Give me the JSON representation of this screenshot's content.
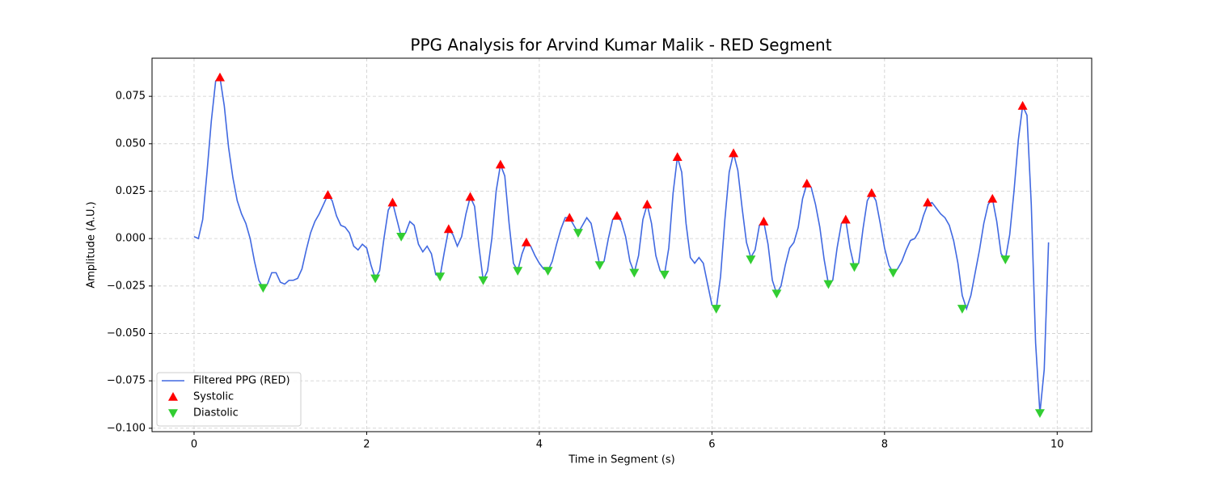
{
  "chart_data": {
    "type": "line",
    "title": "PPG Analysis for Arvind Kumar Malik - RED Segment",
    "xlabel": "Time in Segment (s)",
    "ylabel": "Amplitude (A.U.)",
    "xlim": [
      -0.487,
      10.4
    ],
    "ylim": [
      -0.1018,
      0.0951
    ],
    "xticks": [
      0,
      2,
      4,
      6,
      8,
      10
    ],
    "yticks": [
      {
        "value": -0.1,
        "label": "−0.100"
      },
      {
        "value": -0.075,
        "label": "−0.075"
      },
      {
        "value": -0.05,
        "label": "−0.050"
      },
      {
        "value": -0.025,
        "label": "−0.025"
      },
      {
        "value": 0,
        "label": "0.000"
      },
      0.025,
      {
        "value": 0.05,
        "label": "0.050"
      },
      0.075
    ],
    "grid": true,
    "legend": "lower left",
    "series": [
      {
        "name": "Filtered PPG (RED)",
        "type": "line",
        "color": "#4169e1",
        "x": [
          0,
          0.05,
          0.1,
          0.15,
          0.2,
          0.25,
          0.3,
          0.35,
          0.4,
          0.45,
          0.5,
          0.55,
          0.6,
          0.65,
          0.7,
          0.75,
          0.8,
          0.85,
          0.9,
          0.95,
          1,
          1.05,
          1.1,
          1.15,
          1.2,
          1.25,
          1.3,
          1.35,
          1.4,
          1.45,
          1.5,
          1.55,
          1.6,
          1.65,
          1.7,
          1.75,
          1.8,
          1.85,
          1.9,
          1.95,
          2,
          2.05,
          2.1,
          2.15,
          2.2,
          2.25,
          2.3,
          2.35,
          2.4,
          2.45,
          2.5,
          2.55,
          2.6,
          2.65,
          2.7,
          2.75,
          2.8,
          2.85,
          2.9,
          2.95,
          3,
          3.05,
          3.1,
          3.15,
          3.2,
          3.25,
          3.3,
          3.35,
          3.4,
          3.45,
          3.5,
          3.55,
          3.6,
          3.65,
          3.7,
          3.75,
          3.8,
          3.85,
          3.9,
          3.95,
          4,
          4.05,
          4.1,
          4.15,
          4.2,
          4.25,
          4.3,
          4.35,
          4.4,
          4.45,
          4.5,
          4.55,
          4.6,
          4.65,
          4.7,
          4.75,
          4.8,
          4.85,
          4.9,
          4.95,
          5,
          5.05,
          5.1,
          5.15,
          5.2,
          5.25,
          5.3,
          5.35,
          5.4,
          5.45,
          5.5,
          5.55,
          5.6,
          5.65,
          5.7,
          5.75,
          5.8,
          5.85,
          5.9,
          5.95,
          6,
          6.05,
          6.1,
          6.15,
          6.2,
          6.25,
          6.3,
          6.35,
          6.4,
          6.45,
          6.5,
          6.55,
          6.6,
          6.65,
          6.7,
          6.75,
          6.8,
          6.85,
          6.9,
          6.95,
          7,
          7.05,
          7.1,
          7.15,
          7.2,
          7.25,
          7.3,
          7.35,
          7.4,
          7.45,
          7.5,
          7.55,
          7.6,
          7.65,
          7.7,
          7.75,
          7.8,
          7.85,
          7.9,
          7.95,
          8,
          8.05,
          8.1,
          8.15,
          8.2,
          8.25,
          8.3,
          8.35,
          8.4,
          8.45,
          8.5,
          8.55,
          8.6,
          8.65,
          8.7,
          8.75,
          8.8,
          8.85,
          8.9,
          8.95,
          9,
          9.05,
          9.1,
          9.15,
          9.2,
          9.25,
          9.3,
          9.35,
          9.4,
          9.45,
          9.5,
          9.55,
          9.6,
          9.65,
          9.7,
          9.75,
          9.8,
          9.85,
          9.9
        ],
        "values": [
          0.001,
          0,
          0.01,
          0.035,
          0.062,
          0.083,
          0.085,
          0.07,
          0.048,
          0.032,
          0.02,
          0.013,
          0.008,
          0,
          -0.012,
          -0.022,
          -0.026,
          -0.024,
          -0.018,
          -0.018,
          -0.023,
          -0.024,
          -0.022,
          -0.022,
          -0.021,
          -0.016,
          -0.006,
          0.003,
          0.009,
          0.013,
          0.018,
          0.023,
          0.02,
          0.012,
          0.007,
          0.006,
          0.003,
          -0.004,
          -0.006,
          -0.003,
          -0.005,
          -0.014,
          -0.021,
          -0.017,
          0,
          0.015,
          0.019,
          0.01,
          0.001,
          0.003,
          0.009,
          0.007,
          -0.003,
          -0.007,
          -0.004,
          -0.008,
          -0.019,
          -0.02,
          -0.007,
          0.005,
          0.002,
          -0.004,
          0.001,
          0.013,
          0.022,
          0.017,
          -0.004,
          -0.022,
          -0.017,
          0,
          0.025,
          0.039,
          0.033,
          0.008,
          -0.013,
          -0.017,
          -0.008,
          -0.002,
          -0.004,
          -0.009,
          -0.013,
          -0.016,
          -0.017,
          -0.012,
          -0.003,
          0.005,
          0.011,
          0.011,
          0.007,
          0.003,
          0.007,
          0.011,
          0.008,
          -0.003,
          -0.014,
          -0.012,
          0,
          0.01,
          0.012,
          0.009,
          0.001,
          -0.012,
          -0.018,
          -0.009,
          0.01,
          0.018,
          0.008,
          -0.009,
          -0.017,
          -0.019,
          -0.005,
          0.024,
          0.043,
          0.035,
          0.008,
          -0.01,
          -0.013,
          -0.01,
          -0.013,
          -0.024,
          -0.035,
          -0.037,
          -0.02,
          0.01,
          0.035,
          0.045,
          0.036,
          0.016,
          -0.002,
          -0.01,
          -0.006,
          0.007,
          0.009,
          -0.003,
          -0.022,
          -0.029,
          -0.025,
          -0.014,
          -0.005,
          -0.002,
          0.006,
          0.021,
          0.029,
          0.027,
          0.018,
          0.006,
          -0.011,
          -0.024,
          -0.022,
          -0.005,
          0.008,
          0.01,
          -0.005,
          -0.015,
          -0.013,
          0.005,
          0.02,
          0.024,
          0.02,
          0.008,
          -0.005,
          -0.014,
          -0.018,
          -0.016,
          -0.012,
          -0.006,
          -0.001,
          0,
          0.004,
          0.012,
          0.018,
          0.019,
          0.016,
          0.013,
          0.011,
          0.007,
          -0.001,
          -0.013,
          -0.03,
          -0.037,
          -0.03,
          -0.018,
          -0.006,
          0.008,
          0.018,
          0.021,
          0.009,
          -0.008,
          -0.011,
          0.002,
          0.025,
          0.052,
          0.07,
          0.065,
          0.018,
          -0.055,
          -0.092,
          -0.069,
          -0.002
        ]
      },
      {
        "name": "Systolic",
        "type": "scatter",
        "marker": "up",
        "color": "#ff0000",
        "x": [
          0.3,
          1.55,
          2.3,
          2.95,
          3.2,
          3.55,
          3.85,
          4.35,
          4.9,
          5.25,
          5.6,
          6.25,
          6.6,
          7.1,
          7.55,
          7.85,
          8.5,
          9.25,
          9.6
        ],
        "values": [
          0.085,
          0.023,
          0.019,
          0.005,
          0.022,
          0.039,
          -0.002,
          0.011,
          0.012,
          0.018,
          0.043,
          0.045,
          0.009,
          0.029,
          0.01,
          0.024,
          0.019,
          0.021,
          0.07
        ]
      },
      {
        "name": "Diastolic",
        "type": "scatter",
        "marker": "down",
        "color": "#32cd32",
        "x": [
          0.8,
          2.1,
          2.4,
          2.85,
          3.35,
          3.75,
          4.1,
          4.45,
          4.7,
          5.1,
          5.45,
          6.05,
          6.45,
          6.75,
          7.35,
          7.65,
          8.1,
          8.9,
          9.4,
          9.8
        ],
        "values": [
          -0.026,
          -0.021,
          0.001,
          -0.02,
          -0.022,
          -0.017,
          -0.017,
          0.003,
          -0.014,
          -0.018,
          -0.019,
          -0.037,
          -0.011,
          -0.029,
          -0.024,
          -0.015,
          -0.018,
          -0.037,
          -0.011,
          -0.092
        ]
      }
    ]
  }
}
